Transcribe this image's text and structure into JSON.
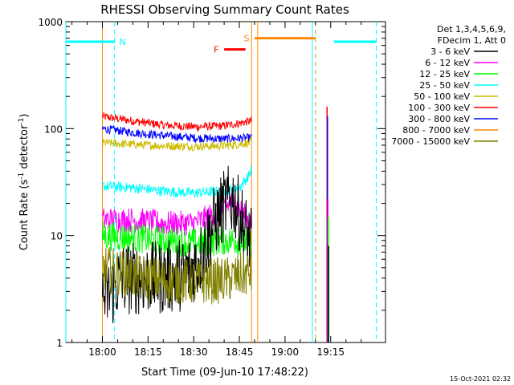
{
  "chart_data": {
    "type": "line",
    "title": "RHESSI Observing Summary Count Rates",
    "xlabel": "Start Time (09-Jun-10 17:48:22)",
    "ylabel_main": "Count Rate (s",
    "ylabel_sup1": "-1",
    "ylabel_mid": " detector",
    "ylabel_sup2": "-1",
    "ylabel_end": ")",
    "yscale": "log",
    "ylim": [
      1,
      1000
    ],
    "xlim_minutes": [
      -12,
      93
    ],
    "x_ticks": [
      {
        "label": "18:00",
        "minutes": 0
      },
      {
        "label": "18:15",
        "minutes": 15
      },
      {
        "label": "18:30",
        "minutes": 30
      },
      {
        "label": "18:45",
        "minutes": 45
      },
      {
        "label": "19:00",
        "minutes": 60
      },
      {
        "label": "19:15",
        "minutes": 75
      }
    ],
    "y_ticks": [
      {
        "label": "1",
        "value": 1
      },
      {
        "label": "10",
        "value": 10
      },
      {
        "label": "100",
        "value": 100
      },
      {
        "label": "1000",
        "value": 1000
      }
    ],
    "legend_header": [
      "Det 1,3,4,5,6,9,",
      "FDecim 1, Att 0"
    ],
    "legend": [
      {
        "name": "3 - 6 keV",
        "color": "#000000"
      },
      {
        "name": "6 - 12 keV",
        "color": "#ff00ff"
      },
      {
        "name": "12 - 25 keV",
        "color": "#00ff00"
      },
      {
        "name": "25 - 50 keV",
        "color": "#00ffff"
      },
      {
        "name": "50 - 100 keV",
        "color": "#ccbb00"
      },
      {
        "name": "100 - 300 keV",
        "color": "#ff0000"
      },
      {
        "name": "300 - 800 keV",
        "color": "#0000ff"
      },
      {
        "name": "800 - 7000 keV",
        "color": "#ff8800"
      },
      {
        "name": "7000 - 15000 keV",
        "color": "#808000"
      }
    ],
    "flags": [
      {
        "label": "N",
        "color": "#00ffff",
        "value": 650,
        "segments": [
          [
            -12,
            4
          ],
          [
            76,
            90
          ]
        ]
      },
      {
        "label": "F",
        "color": "#ff0000",
        "value": 550,
        "segments": [
          [
            40,
            47
          ]
        ]
      },
      {
        "label": "S",
        "color": "#ff8800",
        "value": 700,
        "segments": [
          [
            50,
            70
          ]
        ]
      }
    ],
    "vertical_lines": [
      {
        "color": "#00ffff",
        "style": "solid",
        "minutes": -12
      },
      {
        "color": "#00ffff",
        "style": "dashed",
        "minutes": 4
      },
      {
        "color": "#ff8800",
        "style": "solid",
        "minutes": 0
      },
      {
        "color": "#ff8800",
        "style": "solid",
        "minutes": 49
      },
      {
        "color": "#ff8800",
        "style": "solid",
        "minutes": 51
      },
      {
        "color": "#00ffff",
        "style": "solid",
        "minutes": 69
      },
      {
        "color": "#ff8800",
        "style": "dashed",
        "minutes": 70
      },
      {
        "color": "#00ffff",
        "style": "dashed",
        "minutes": 90
      }
    ],
    "data_window_minutes": [
      0,
      49
    ],
    "series": [
      {
        "name": "100 - 300 keV",
        "color": "#ff0000",
        "x": [
          0,
          10,
          20,
          30,
          40,
          49
        ],
        "y": [
          130,
          118,
          108,
          104,
          106,
          118
        ]
      },
      {
        "name": "300 - 800 keV",
        "color": "#0000ff",
        "x": [
          0,
          10,
          20,
          30,
          40,
          49
        ],
        "y": [
          100,
          92,
          86,
          82,
          80,
          82
        ]
      },
      {
        "name": "50 - 100 keV",
        "color": "#ccbb00",
        "x": [
          0,
          10,
          20,
          30,
          40,
          49
        ],
        "y": [
          74,
          71,
          69,
          68,
          69,
          74
        ]
      },
      {
        "name": "25 - 50 keV",
        "color": "#00ffff",
        "x": [
          0,
          10,
          20,
          30,
          40,
          45,
          48,
          49
        ],
        "y": [
          29,
          28,
          26,
          25,
          26,
          28,
          36,
          42
        ]
      },
      {
        "name": "6 - 12 keV",
        "color": "#ff00ff",
        "x": [
          0,
          10,
          20,
          30,
          35,
          40,
          43,
          46,
          49
        ],
        "y": [
          14,
          14,
          13,
          13,
          15,
          18,
          21,
          16,
          13
        ]
      },
      {
        "name": "12 - 25 keV",
        "color": "#00ff00",
        "x": [
          0,
          10,
          20,
          30,
          40,
          45,
          49
        ],
        "y": [
          10,
          9.5,
          9,
          8.5,
          9,
          9,
          8.5
        ]
      },
      {
        "name": "3 - 6 keV",
        "color": "#000000",
        "x": [
          0,
          3,
          6,
          10,
          20,
          28,
          32,
          36,
          40,
          43,
          46,
          49
        ],
        "y": [
          2.5,
          3,
          4,
          4,
          4,
          4.5,
          6,
          12,
          19,
          22,
          13,
          8
        ]
      },
      {
        "name": "7000 - 15000 keV",
        "color": "#808000",
        "x": [
          0,
          10,
          20,
          30,
          40,
          49
        ],
        "y": [
          5,
          4.2,
          3.8,
          3.7,
          3.8,
          4.5
        ]
      }
    ],
    "spikes": {
      "x_minutes": 73.8,
      "values": [
        {
          "color": "#ff0000",
          "value": 160
        },
        {
          "color": "#0000ff",
          "value": 130
        },
        {
          "color": "#ff00ff",
          "value": 22
        },
        {
          "color": "#00ff00",
          "value": 15
        },
        {
          "color": "#000000",
          "value": 8
        }
      ]
    }
  },
  "footer_timestamp": "15-Oct-2021 02:32"
}
